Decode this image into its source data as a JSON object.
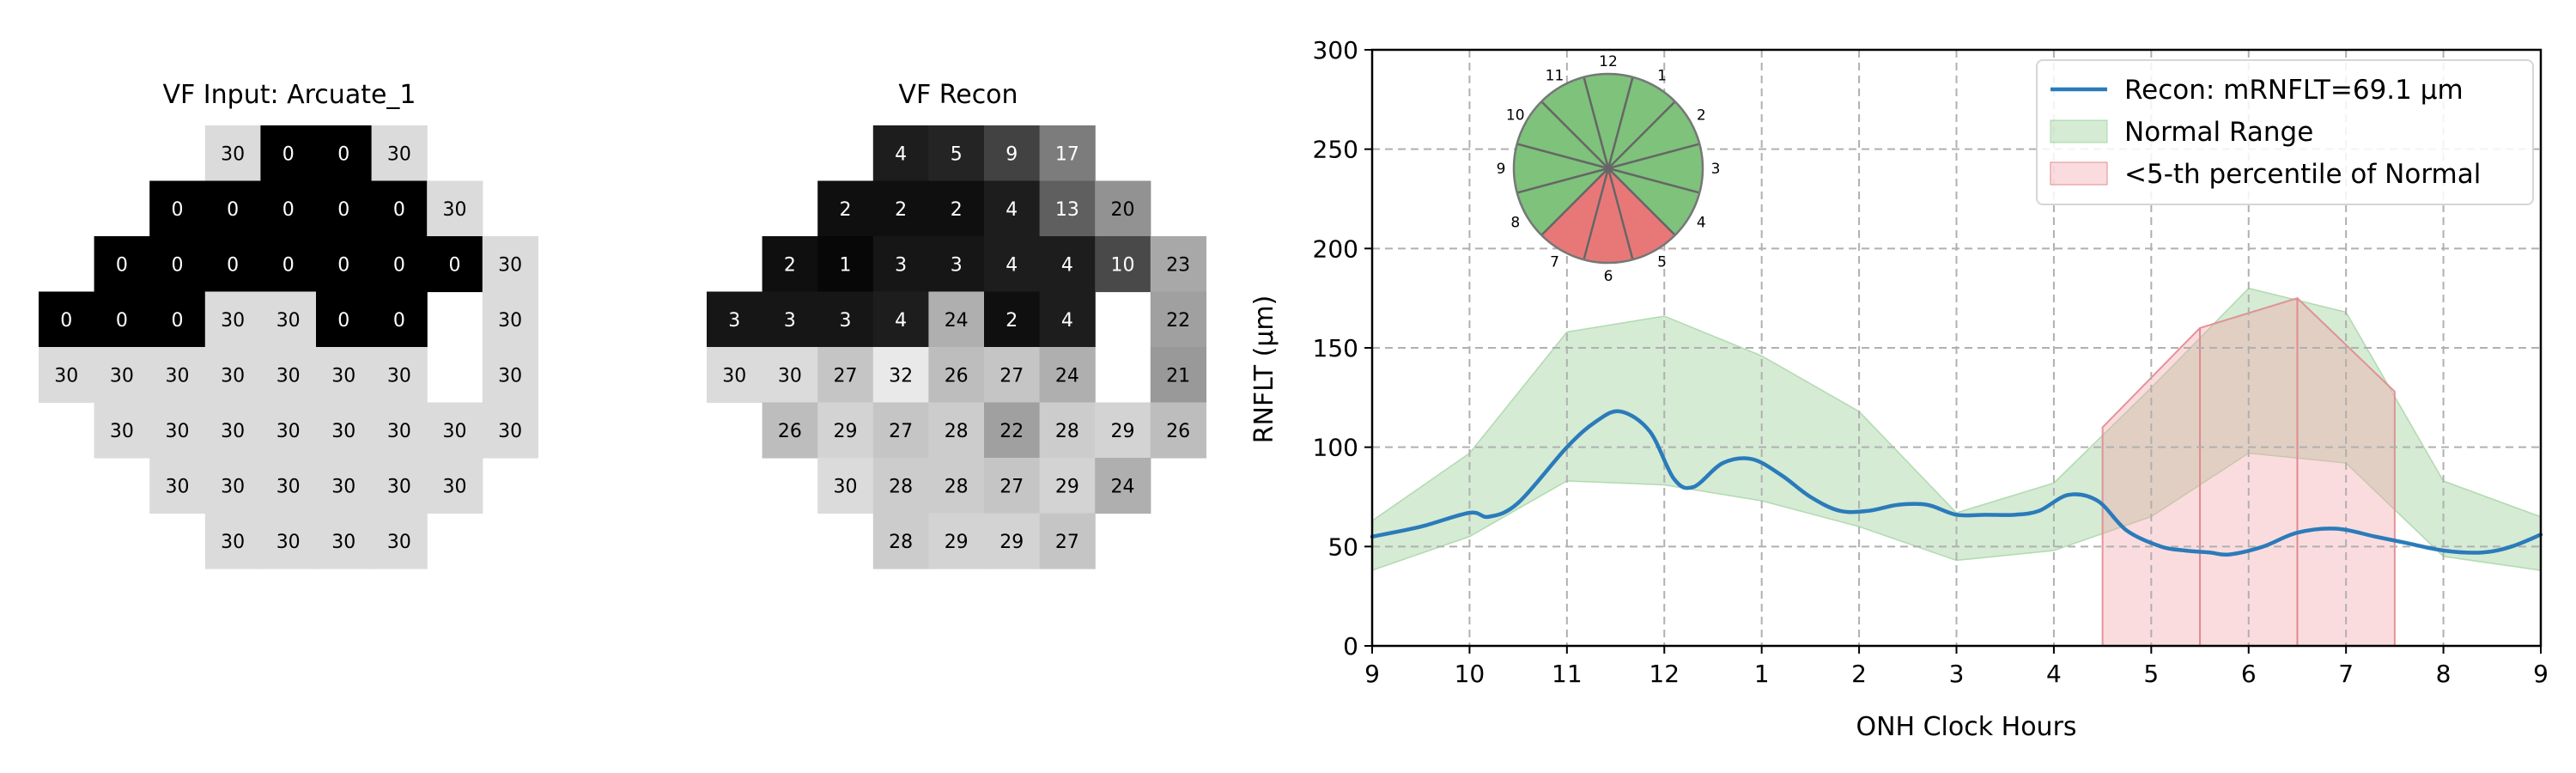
{
  "chart_data": [
    {
      "type": "heatmap",
      "title": "VF Input: Arcuate_1",
      "rows": [
        [
          null,
          null,
          null,
          30,
          0,
          0,
          30,
          null,
          null
        ],
        [
          null,
          null,
          0,
          0,
          0,
          0,
          0,
          30,
          null
        ],
        [
          null,
          0,
          0,
          0,
          0,
          0,
          0,
          0,
          30
        ],
        [
          0,
          0,
          0,
          30,
          30,
          0,
          0,
          null,
          30
        ],
        [
          30,
          30,
          30,
          30,
          30,
          30,
          30,
          null,
          30
        ],
        [
          null,
          30,
          30,
          30,
          30,
          30,
          30,
          30,
          30
        ],
        [
          null,
          null,
          30,
          30,
          30,
          30,
          30,
          30,
          null
        ],
        [
          null,
          null,
          null,
          30,
          30,
          30,
          30,
          null,
          null
        ]
      ],
      "vmin": 0,
      "vmax": 35
    },
    {
      "type": "heatmap",
      "title": "VF Recon",
      "rows": [
        [
          null,
          null,
          null,
          4,
          5,
          9,
          17,
          null,
          null
        ],
        [
          null,
          null,
          2,
          2,
          2,
          4,
          13,
          20,
          null
        ],
        [
          null,
          2,
          1,
          3,
          3,
          4,
          4,
          10,
          23
        ],
        [
          3,
          3,
          3,
          4,
          24,
          2,
          4,
          null,
          22
        ],
        [
          30,
          30,
          27,
          32,
          26,
          27,
          24,
          null,
          21
        ],
        [
          null,
          26,
          29,
          27,
          28,
          22,
          28,
          29,
          26
        ],
        [
          null,
          null,
          30,
          28,
          28,
          27,
          29,
          24,
          null
        ],
        [
          null,
          null,
          null,
          28,
          29,
          29,
          27,
          null,
          null
        ]
      ],
      "vmin": 0,
      "vmax": 35
    },
    {
      "type": "line",
      "xlabel": "ONH Clock Hours",
      "ylabel": "RNFLT (μm)",
      "x_tick_labels": [
        "9",
        "10",
        "11",
        "12",
        "1",
        "2",
        "3",
        "4",
        "5",
        "6",
        "7",
        "8",
        "9"
      ],
      "xlim": [
        0,
        12
      ],
      "ylim": [
        0,
        300
      ],
      "y_ticks": [
        0,
        50,
        100,
        150,
        200,
        250,
        300
      ],
      "grid": true,
      "legend_position": "top-right",
      "legend": [
        "Recon: mRNFLT=69.1 μm",
        "Normal Range",
        "<5-th percentile of Normal"
      ],
      "series": [
        {
          "name": "Recon: mRNFLT=69.1 μm",
          "color": "#2b7bba",
          "x": [
            0,
            0.5,
            1,
            1.2,
            1.5,
            2,
            2.3,
            2.55,
            2.85,
            3.1,
            3.3,
            3.6,
            3.9,
            4.2,
            4.5,
            4.8,
            5.1,
            5.4,
            5.7,
            6,
            6.3,
            6.6,
            6.85,
            7.15,
            7.45,
            7.75,
            8.1,
            8.35,
            8.6,
            8.8,
            9.15,
            9.5,
            9.9,
            10.3,
            10.6,
            11,
            11.4,
            11.7,
            12
          ],
          "y": [
            55,
            60,
            67,
            65,
            72,
            100,
            113,
            118,
            108,
            84,
            80,
            92,
            94,
            86,
            75,
            68,
            68,
            71,
            71,
            66,
            66,
            66,
            68,
            76,
            73,
            58,
            50,
            48,
            47,
            46,
            50,
            57,
            59,
            55,
            52,
            48,
            47,
            50,
            56
          ]
        }
      ],
      "normal_range": {
        "name": "Normal Range",
        "color": "#7ec27b",
        "x": [
          0,
          1,
          2,
          3,
          4,
          5,
          6,
          7,
          8,
          9,
          10,
          11,
          12
        ],
        "lower": [
          38,
          55,
          83,
          81,
          73,
          60,
          43,
          48,
          65,
          97,
          92,
          45,
          38
        ],
        "upper": [
          63,
          97,
          158,
          166,
          146,
          118,
          67,
          82,
          130,
          180,
          168,
          83,
          65
        ]
      },
      "below_5th_percentile": {
        "name": "<5-th percentile of Normal",
        "color": "#f4a3a8",
        "x": [
          7.5,
          8.5,
          9.5,
          10.5
        ],
        "lower": [
          0,
          0,
          0,
          0
        ],
        "upper": [
          110,
          160,
          175,
          128
        ]
      },
      "clock_diagram": {
        "labels": [
          "12",
          "1",
          "2",
          "3",
          "4",
          "5",
          "6",
          "7",
          "8",
          "9",
          "10",
          "11"
        ],
        "green_color": "#7ec27b",
        "red_color": "#e87878",
        "red_hours": [
          "5",
          "6",
          "7"
        ]
      }
    }
  ]
}
